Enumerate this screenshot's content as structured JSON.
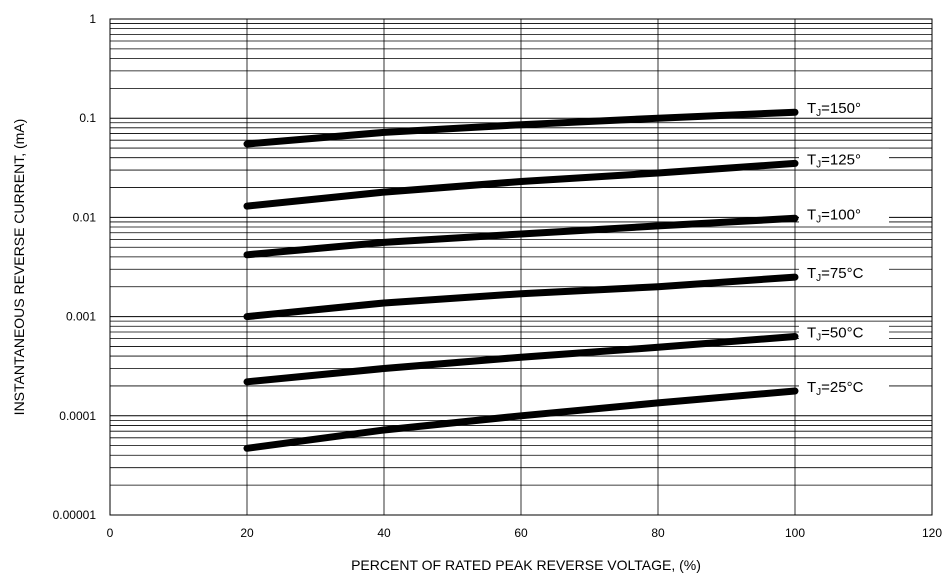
{
  "chart_data": {
    "type": "line",
    "title": "",
    "xlabel": "PERCENT OF RATED PEAK REVERSE VOLTAGE, (%)",
    "ylabel": "INSTANTANEOUS REVERSE CURRENT, (mA)",
    "xlim": [
      0,
      120
    ],
    "ylim": [
      1e-05,
      1
    ],
    "yscale": "log",
    "grid": true,
    "x_ticks": [
      "0",
      "20",
      "40",
      "60",
      "80",
      "100",
      "120"
    ],
    "y_ticks": [
      "1",
      "0.1",
      "0.01",
      "0.001",
      "0.0001",
      "0.00001"
    ],
    "x": [
      20,
      40,
      60,
      80,
      100
    ],
    "series": [
      {
        "name": "TJ=150°",
        "label_main": "T",
        "label_sub": "J",
        "label_rest": "=150°",
        "values": [
          0.055,
          0.072,
          0.086,
          0.1,
          0.115
        ]
      },
      {
        "name": "TJ=125°",
        "label_main": "T",
        "label_sub": "J",
        "label_rest": "=125°",
        "values": [
          0.013,
          0.018,
          0.023,
          0.028,
          0.035
        ]
      },
      {
        "name": "TJ=100°",
        "label_main": "T",
        "label_sub": "J",
        "label_rest": "=100°",
        "values": [
          0.0042,
          0.0056,
          0.0068,
          0.0082,
          0.0098
        ]
      },
      {
        "name": "TJ=75°C",
        "label_main": "T",
        "label_sub": "J",
        "label_rest": "=75°C",
        "values": [
          0.001,
          0.00137,
          0.0017,
          0.002,
          0.0025
        ]
      },
      {
        "name": "TJ=50°C",
        "label_main": "T",
        "label_sub": "J",
        "label_rest": "=50°C",
        "values": [
          0.00022,
          0.0003,
          0.00039,
          0.00049,
          0.00063
        ]
      },
      {
        "name": "TJ=25°C",
        "label_main": "T",
        "label_sub": "J",
        "label_rest": "=25°C",
        "values": [
          4.7e-05,
          7.2e-05,
          0.0001,
          0.000135,
          0.000178
        ]
      }
    ]
  }
}
